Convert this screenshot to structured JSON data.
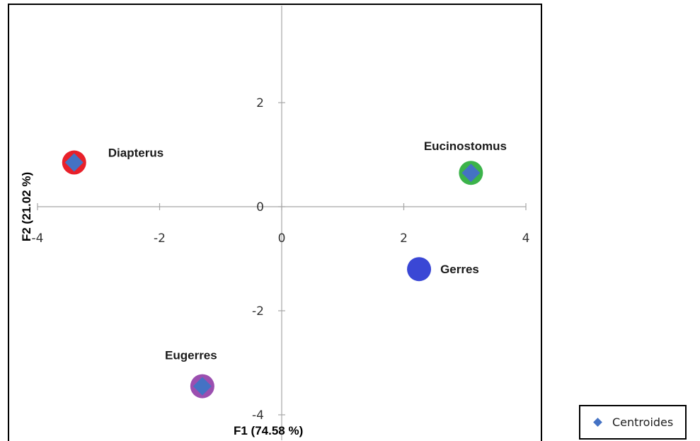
{
  "chart_data": {
    "type": "scatter",
    "xlabel": "F1 (74.58 %)",
    "ylabel": "F2 (21.02 %)",
    "xlim": [
      -4,
      4
    ],
    "ylim": [
      -4,
      4
    ],
    "xticks": [
      -4,
      -2,
      0,
      2,
      4
    ],
    "yticks": [
      -4,
      -2,
      0,
      2
    ],
    "grid": false,
    "legend": {
      "placement": "bottom-right",
      "entries": [
        "Centroides"
      ]
    },
    "groups": [
      {
        "label": "Diapterus",
        "x": -3.4,
        "y": 0.85,
        "color": "#e8202a",
        "has_centroid": true
      },
      {
        "label": "Eucinostomus",
        "x": 3.1,
        "y": 0.65,
        "color": "#3bb34a",
        "has_centroid": true
      },
      {
        "label": "Gerres",
        "x": 2.25,
        "y": -1.2,
        "color": "#3a47d5",
        "has_centroid": false
      },
      {
        "label": "Eugerres",
        "x": -1.3,
        "y": -3.45,
        "color": "#9b4fb0",
        "has_centroid": true
      }
    ],
    "centroid_color": "#4472c4"
  }
}
